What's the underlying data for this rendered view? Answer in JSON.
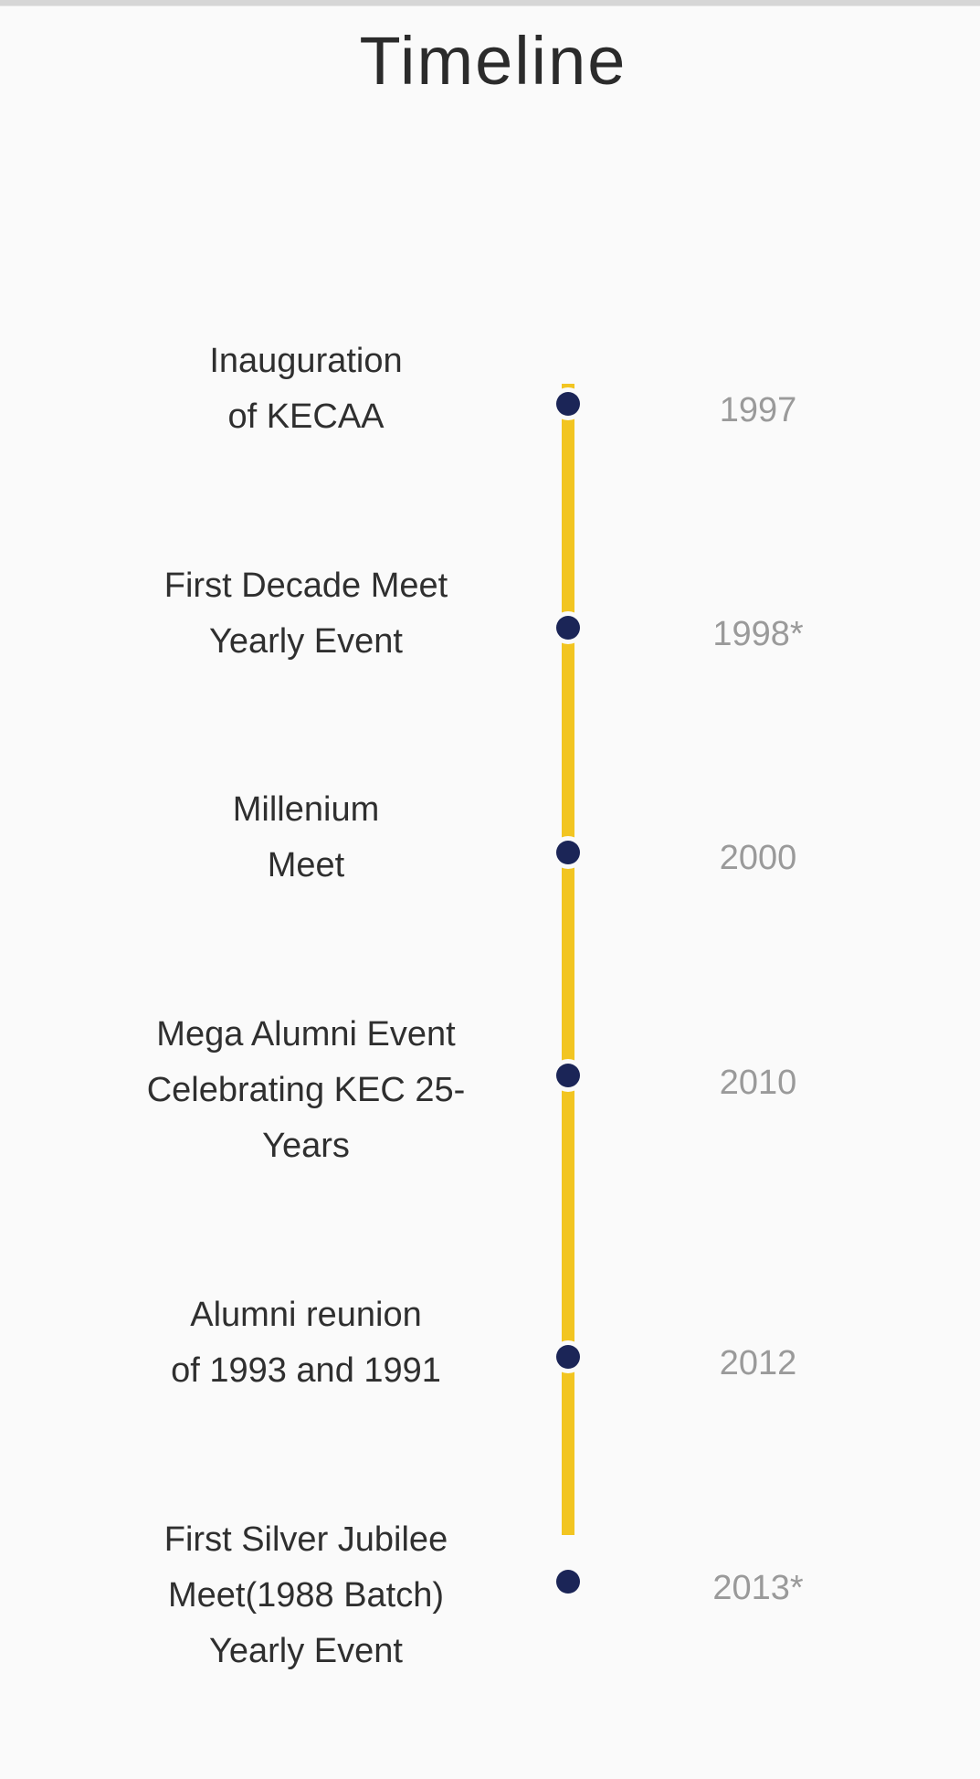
{
  "page": {
    "title": "Timeline"
  },
  "colors": {
    "track": "#f2c521",
    "dot": "#1b2557",
    "label_text": "#2f2f2f",
    "year_text": "#9a9a9a",
    "background": "#fafafa"
  },
  "timeline": {
    "events": [
      {
        "lines": [
          "Inauguration",
          "of KECAA"
        ],
        "year": "1997"
      },
      {
        "lines": [
          "First Decade Meet",
          "Yearly Event"
        ],
        "year": "1998*"
      },
      {
        "lines": [
          "Millenium",
          "Meet"
        ],
        "year": "2000"
      },
      {
        "lines": [
          "Mega Alumni Event",
          "Celebrating KEC 25-",
          "Years"
        ],
        "year": "2010"
      },
      {
        "lines": [
          "Alumni reunion",
          "of 1993 and 1991"
        ],
        "year": "2012"
      },
      {
        "lines": [
          "First Silver Jubilee",
          "Meet(1988 Batch)",
          "Yearly Event"
        ],
        "year": "2013*"
      }
    ]
  }
}
